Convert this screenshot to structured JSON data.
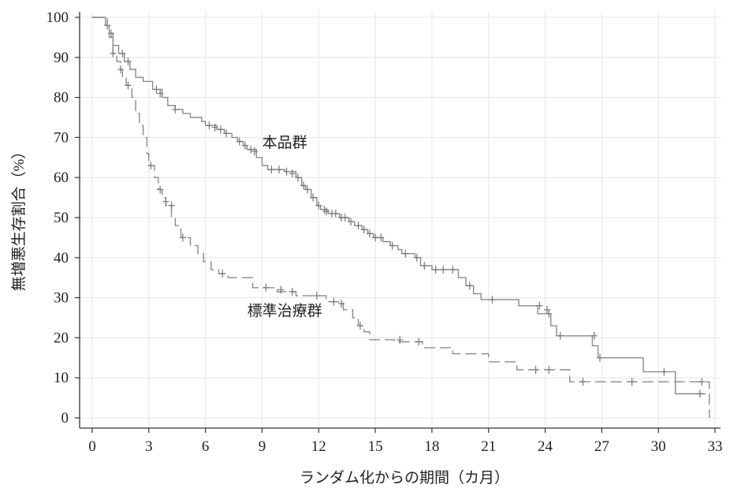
{
  "chart_data": {
    "type": "line",
    "subtype": "kaplan-meier",
    "xlabel": "ランダム化からの期間（カ月）",
    "ylabel": "無増悪生存割合（%）",
    "xlim": [
      0,
      33
    ],
    "ylim": [
      0,
      100
    ],
    "xticks": [
      "0",
      "3",
      "6",
      "9",
      "12",
      "15",
      "18",
      "21",
      "24",
      "27",
      "30",
      "33"
    ],
    "yticks": [
      "0",
      "10",
      "20",
      "30",
      "40",
      "50",
      "60",
      "70",
      "80",
      "90",
      "100"
    ],
    "grid": true,
    "series": [
      {
        "name": "本品群",
        "line_style": "solid",
        "color": "#8a8a8a",
        "points": [
          [
            0,
            100
          ],
          [
            0.7,
            100
          ],
          [
            0.7,
            98
          ],
          [
            0.9,
            98
          ],
          [
            0.9,
            96
          ],
          [
            1.1,
            96
          ],
          [
            1.1,
            93
          ],
          [
            1.4,
            93
          ],
          [
            1.4,
            91
          ],
          [
            1.7,
            91
          ],
          [
            1.7,
            89
          ],
          [
            2.0,
            89
          ],
          [
            2.0,
            87
          ],
          [
            2.3,
            87
          ],
          [
            2.3,
            85
          ],
          [
            2.7,
            85
          ],
          [
            2.7,
            84
          ],
          [
            3.2,
            84
          ],
          [
            3.2,
            82
          ],
          [
            3.7,
            82
          ],
          [
            3.7,
            80
          ],
          [
            4.0,
            80
          ],
          [
            4.0,
            78
          ],
          [
            4.4,
            78
          ],
          [
            4.4,
            77
          ],
          [
            4.8,
            77
          ],
          [
            4.8,
            76
          ],
          [
            5.2,
            76
          ],
          [
            5.2,
            75
          ],
          [
            5.8,
            75
          ],
          [
            5.8,
            74
          ],
          [
            6.0,
            74
          ],
          [
            6.0,
            73
          ],
          [
            6.6,
            73
          ],
          [
            6.6,
            72
          ],
          [
            7.0,
            72
          ],
          [
            7.0,
            71
          ],
          [
            7.4,
            71
          ],
          [
            7.4,
            70
          ],
          [
            7.7,
            70
          ],
          [
            7.7,
            69
          ],
          [
            8.0,
            69
          ],
          [
            8.0,
            68
          ],
          [
            8.2,
            68
          ],
          [
            8.2,
            67
          ],
          [
            8.7,
            67
          ],
          [
            8.7,
            65
          ],
          [
            9.0,
            65
          ],
          [
            9.0,
            63
          ],
          [
            9.3,
            63
          ],
          [
            9.3,
            62
          ],
          [
            10.2,
            62
          ],
          [
            10.2,
            61.5
          ],
          [
            10.8,
            61.5
          ],
          [
            10.8,
            60
          ],
          [
            11.1,
            60
          ],
          [
            11.1,
            58
          ],
          [
            11.3,
            58
          ],
          [
            11.3,
            57
          ],
          [
            11.6,
            57
          ],
          [
            11.6,
            55
          ],
          [
            11.9,
            55
          ],
          [
            11.9,
            53
          ],
          [
            12.1,
            53
          ],
          [
            12.1,
            52
          ],
          [
            12.5,
            52
          ],
          [
            12.5,
            51
          ],
          [
            13.1,
            51
          ],
          [
            13.1,
            50
          ],
          [
            13.6,
            50
          ],
          [
            13.6,
            49
          ],
          [
            13.9,
            49
          ],
          [
            13.9,
            48
          ],
          [
            14.3,
            48
          ],
          [
            14.3,
            47
          ],
          [
            14.6,
            47
          ],
          [
            14.6,
            46
          ],
          [
            14.9,
            46
          ],
          [
            14.9,
            45
          ],
          [
            15.4,
            45
          ],
          [
            15.4,
            44
          ],
          [
            15.8,
            44
          ],
          [
            15.8,
            43
          ],
          [
            16.2,
            43
          ],
          [
            16.2,
            42
          ],
          [
            16.4,
            42
          ],
          [
            16.4,
            41
          ],
          [
            17.1,
            41
          ],
          [
            17.1,
            40
          ],
          [
            17.4,
            40
          ],
          [
            17.4,
            38
          ],
          [
            18.0,
            38
          ],
          [
            18.0,
            37
          ],
          [
            19.4,
            37
          ],
          [
            19.4,
            35
          ],
          [
            19.8,
            35
          ],
          [
            19.8,
            33
          ],
          [
            20.2,
            33
          ],
          [
            20.2,
            31
          ],
          [
            20.6,
            31
          ],
          [
            20.6,
            29.5
          ],
          [
            22.6,
            29.5
          ],
          [
            22.6,
            28
          ],
          [
            23.6,
            28
          ],
          [
            23.6,
            26
          ],
          [
            24.3,
            26
          ],
          [
            24.3,
            23
          ],
          [
            24.6,
            23
          ],
          [
            24.6,
            20.5
          ],
          [
            26.5,
            20.5
          ],
          [
            26.5,
            18
          ],
          [
            26.8,
            18
          ],
          [
            26.8,
            15
          ],
          [
            29.2,
            15
          ],
          [
            29.2,
            11.5
          ],
          [
            30.9,
            11.5
          ],
          [
            30.9,
            6
          ],
          [
            32.5,
            6
          ]
        ],
        "censored": [
          [
            0.8,
            98
          ],
          [
            1.0,
            96
          ],
          [
            1.6,
            91
          ],
          [
            1.9,
            89
          ],
          [
            3.4,
            82
          ],
          [
            3.6,
            81
          ],
          [
            4.4,
            77
          ],
          [
            6.2,
            73
          ],
          [
            6.5,
            72.5
          ],
          [
            6.8,
            72
          ],
          [
            7.1,
            71
          ],
          [
            7.8,
            69
          ],
          [
            8.1,
            68
          ],
          [
            8.4,
            67
          ],
          [
            8.6,
            66.5
          ],
          [
            9.5,
            62
          ],
          [
            9.9,
            62
          ],
          [
            10.3,
            61.5
          ],
          [
            10.6,
            61
          ],
          [
            10.9,
            60
          ],
          [
            11.2,
            58
          ],
          [
            11.4,
            57
          ],
          [
            11.7,
            55
          ],
          [
            12.0,
            53
          ],
          [
            12.3,
            52
          ],
          [
            12.4,
            51.5
          ],
          [
            12.7,
            51
          ],
          [
            12.9,
            51
          ],
          [
            13.2,
            50
          ],
          [
            13.4,
            50
          ],
          [
            13.7,
            49
          ],
          [
            14.1,
            48
          ],
          [
            14.4,
            47
          ],
          [
            14.7,
            46
          ],
          [
            15.0,
            45
          ],
          [
            15.3,
            45
          ],
          [
            15.9,
            43
          ],
          [
            16.6,
            41
          ],
          [
            17.2,
            40
          ],
          [
            17.6,
            38
          ],
          [
            18.2,
            37
          ],
          [
            18.6,
            37
          ],
          [
            19.1,
            37
          ],
          [
            20.0,
            33
          ],
          [
            21.2,
            29.5
          ],
          [
            23.7,
            28
          ],
          [
            24.1,
            27
          ],
          [
            24.2,
            26
          ],
          [
            24.8,
            20.5
          ],
          [
            26.6,
            20.5
          ],
          [
            26.9,
            15
          ],
          [
            30.3,
            11.5
          ],
          [
            32.2,
            6
          ]
        ]
      },
      {
        "name": "標準治療群",
        "line_style": "dashed",
        "color": "#8a8a8a",
        "points": [
          [
            0,
            100
          ],
          [
            0.8,
            100
          ],
          [
            0.8,
            98
          ],
          [
            0.9,
            98
          ],
          [
            0.9,
            95
          ],
          [
            1.1,
            95
          ],
          [
            1.1,
            91
          ],
          [
            1.3,
            91
          ],
          [
            1.3,
            89
          ],
          [
            1.5,
            89
          ],
          [
            1.5,
            87
          ],
          [
            1.6,
            87
          ],
          [
            1.6,
            85
          ],
          [
            1.8,
            85
          ],
          [
            1.8,
            83
          ],
          [
            2.1,
            83
          ],
          [
            2.1,
            80
          ],
          [
            2.3,
            80
          ],
          [
            2.3,
            76
          ],
          [
            2.5,
            76
          ],
          [
            2.5,
            73
          ],
          [
            2.7,
            73
          ],
          [
            2.7,
            70
          ],
          [
            2.9,
            70
          ],
          [
            2.9,
            66
          ],
          [
            3.0,
            66
          ],
          [
            3.0,
            63
          ],
          [
            3.3,
            63
          ],
          [
            3.3,
            60
          ],
          [
            3.5,
            60
          ],
          [
            3.5,
            57
          ],
          [
            3.7,
            57
          ],
          [
            3.7,
            55
          ],
          [
            3.9,
            55
          ],
          [
            3.9,
            53
          ],
          [
            4.2,
            53
          ],
          [
            4.2,
            50
          ],
          [
            4.4,
            50
          ],
          [
            4.4,
            48
          ],
          [
            4.7,
            48
          ],
          [
            4.7,
            45
          ],
          [
            5.2,
            45
          ],
          [
            5.2,
            43
          ],
          [
            5.6,
            43
          ],
          [
            5.6,
            41
          ],
          [
            5.9,
            41
          ],
          [
            5.9,
            39
          ],
          [
            6.3,
            39
          ],
          [
            6.3,
            37
          ],
          [
            6.7,
            37
          ],
          [
            6.7,
            36
          ],
          [
            7.2,
            36
          ],
          [
            7.2,
            35
          ],
          [
            8.5,
            35
          ],
          [
            8.5,
            32.5
          ],
          [
            9.8,
            32.5
          ],
          [
            9.8,
            31.5
          ],
          [
            10.8,
            31.5
          ],
          [
            10.8,
            30.5
          ],
          [
            12.4,
            30.5
          ],
          [
            12.4,
            29
          ],
          [
            13.3,
            29
          ],
          [
            13.3,
            27
          ],
          [
            13.8,
            27
          ],
          [
            13.8,
            25
          ],
          [
            14.1,
            25
          ],
          [
            14.1,
            23
          ],
          [
            14.4,
            23
          ],
          [
            14.4,
            21.5
          ],
          [
            14.7,
            21.5
          ],
          [
            14.7,
            19.5
          ],
          [
            16.0,
            19.5
          ],
          [
            16.0,
            19
          ],
          [
            17.5,
            19
          ],
          [
            17.5,
            17.5
          ],
          [
            19.1,
            17.5
          ],
          [
            19.1,
            16
          ],
          [
            21.0,
            16
          ],
          [
            21.0,
            14
          ],
          [
            22.5,
            14
          ],
          [
            22.5,
            12
          ],
          [
            25.3,
            12
          ],
          [
            25.3,
            9
          ],
          [
            32.7,
            9
          ],
          [
            32.7,
            0
          ]
        ],
        "censored": [
          [
            1.1,
            91
          ],
          [
            1.5,
            87
          ],
          [
            1.9,
            83
          ],
          [
            3.1,
            63
          ],
          [
            3.6,
            57
          ],
          [
            3.9,
            54
          ],
          [
            4.2,
            53
          ],
          [
            4.8,
            45
          ],
          [
            6.9,
            36
          ],
          [
            9.2,
            32.5
          ],
          [
            10.0,
            32
          ],
          [
            10.6,
            31.5
          ],
          [
            11.9,
            30.5
          ],
          [
            12.8,
            29
          ],
          [
            13.2,
            28.5
          ],
          [
            14.2,
            23
          ],
          [
            16.3,
            19.5
          ],
          [
            17.3,
            19
          ],
          [
            23.5,
            12
          ],
          [
            24.2,
            12
          ],
          [
            26.0,
            9
          ],
          [
            28.6,
            9
          ],
          [
            32.3,
            9
          ]
        ]
      }
    ],
    "annotations": [
      {
        "text": "本品群",
        "x": 10.2,
        "y": 67.5
      },
      {
        "text": "標準治療群",
        "x": 10.2,
        "y": 25.5
      }
    ]
  }
}
